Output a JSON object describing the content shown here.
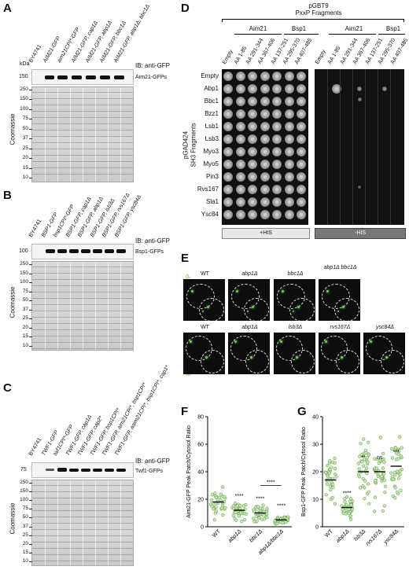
{
  "panels": {
    "A": "A",
    "B": "B",
    "C": "C",
    "D": "D",
    "E": "E",
    "F": "F",
    "G": "G"
  },
  "common": {
    "kda": "kDa",
    "coomassie": "Coomassie",
    "ib_gfp": "IB: anti-GFP",
    "ib_gfp_b": "IB: anti-GFP"
  },
  "panelA": {
    "lanes": [
      "BY4741",
      "AIM21-GFP",
      "aim21CPI*-GFP",
      "AIM21-GFP, cap1Δ",
      "AIM21-GFP, abp1Δ",
      "AIM21-GFP, bbc1Δ",
      "AIM21-GFP, abp1Δ, bbc1Δ"
    ],
    "band_label": "Aim21-GFPs",
    "blot_marker": "150",
    "markers": [
      "250",
      "150",
      "100",
      "75",
      "50",
      "37",
      "25",
      "20",
      "15",
      "10"
    ]
  },
  "panelB": {
    "lanes": [
      "BY4741",
      "BSP1-GFP",
      "bsp1CPI*-GFP",
      "BSP1-GFP, cap1Δ",
      "BSP1-GFP, abp1Δ",
      "BSP1-GFP, lsb3Δ",
      "BSP1-GFP, rvs167Δ",
      "BSP1-GFP, ysc84Δ"
    ],
    "band_label": "Bsp1-GFPs",
    "blot_marker": "100",
    "markers": [
      "250",
      "150",
      "100",
      "75",
      "50",
      "37",
      "25",
      "20",
      "15",
      "10"
    ]
  },
  "panelC": {
    "lanes": [
      "BY4741",
      "TWF1-GFP",
      "twf1CPI*-GFP",
      "TWF1-GFP, cap1Δ",
      "TWF1-GFP, cap2*",
      "TWF1-GFP, bsp1CPI*",
      "TWF1-GFP, aim21CPI*, bsp1CPI*",
      "TWF1-GFP, aaim21CPI*, bsp1CPI*, cap1*"
    ],
    "band_label": "Twf1-GFPs",
    "blot_marker": "75",
    "markers": [
      "250",
      "150",
      "100",
      "75",
      "50",
      "37",
      "25",
      "20",
      "15",
      "10"
    ]
  },
  "panelD": {
    "title": "pGBT9",
    "subtitle": "PxxP Fragments",
    "group_aim21": "Aim21",
    "group_bsp1": "Bsp1",
    "columns": [
      "Empty",
      "AA 1-85",
      "AA 291-344",
      "AA 367-406",
      "AA 137-251",
      "AA 295-370",
      "AA 407-485"
    ],
    "row_axis_title": "pGAD424",
    "row_axis_subtitle": "SH3 Fragments",
    "rows": [
      "Empty",
      "Abp1",
      "Bbc1",
      "Bzz1",
      "Lsb1",
      "Lsb3",
      "Myo3",
      "Myo5",
      "Pin3",
      "Rvs167",
      "Sla1",
      "Ysc84"
    ],
    "plus_his": "+HIS",
    "minus_his": "-HIS",
    "aim21_color": "#6ab04c",
    "bsp1_color": "#e6a817"
  },
  "panelE": {
    "row1_label": "Aim21-GFP",
    "row2_label": "Bsp1-GFP",
    "row1_titles": [
      "WT",
      "abp1Δ",
      "bbc1Δ",
      "abp1Δ bbc1Δ"
    ],
    "row2_titles": [
      "WT",
      "abp1Δ",
      "lsb3Δ",
      "rvs167Δ",
      "ysc84Δ"
    ],
    "green": "#6bd13a"
  },
  "panelF": {
    "ylabel": "Aim21-GFP Peak Patch/Cytosol Ratio",
    "ticks": [
      "0",
      "20",
      "40",
      "60",
      "80"
    ],
    "categories": [
      "WT",
      "abp1Δ",
      "bbc1Δ",
      "abp1Δ/bbc1Δ"
    ],
    "stars": [
      "",
      "****",
      "****",
      "****"
    ],
    "bracket_stars": "****"
  },
  "panelG": {
    "ylabel": "Bsp1-GFP Peak Patch/Cytosol Ratio",
    "ticks": [
      "0",
      "10",
      "20",
      "30",
      "40"
    ],
    "categories": [
      "WT",
      "abp1Δ",
      "lsb3Δ",
      "rvs167Δ",
      "ysc84Δ"
    ],
    "stars": [
      "",
      "****",
      "**",
      "ns",
      "***"
    ]
  },
  "chart_data": [
    {
      "type": "scatter",
      "title": "",
      "ylabel": "Aim21-GFP Peak Patch/Cytosol Ratio",
      "categories": [
        "WT",
        "abp1Δ",
        "bbc1Δ",
        "abp1Δ/bbc1Δ"
      ],
      "means": [
        18,
        12,
        10,
        5
      ],
      "ylim": [
        0,
        80
      ]
    },
    {
      "type": "scatter",
      "title": "",
      "ylabel": "Bsp1-GFP Peak Patch/Cytosol Ratio",
      "categories": [
        "WT",
        "abp1Δ",
        "lsb3Δ",
        "rvs167Δ",
        "ysc84Δ"
      ],
      "means": [
        17,
        7,
        20,
        20,
        22
      ],
      "ylim": [
        0,
        40
      ]
    }
  ]
}
